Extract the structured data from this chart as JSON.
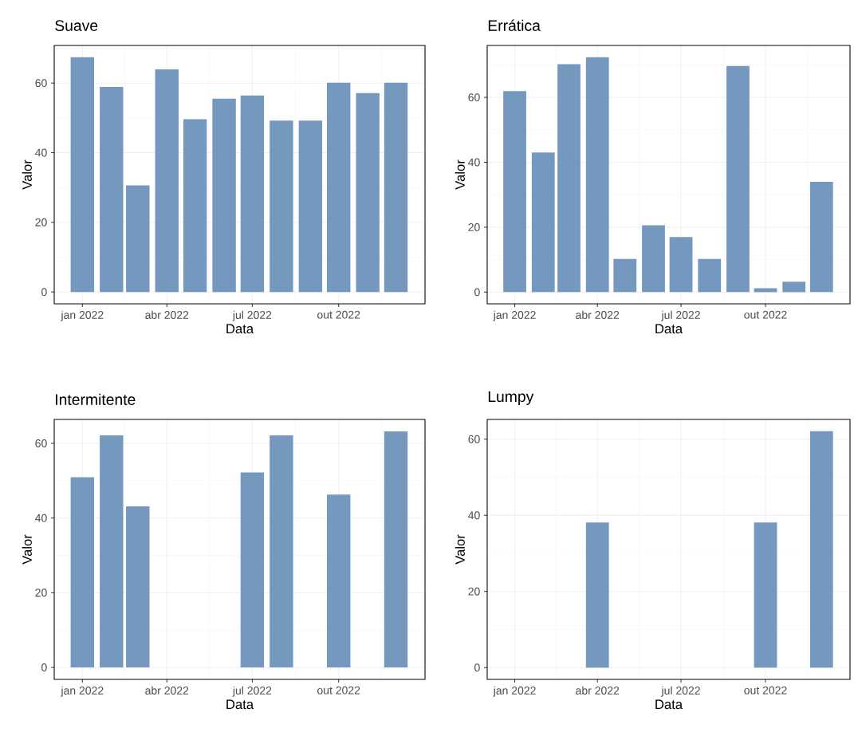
{
  "chart_data": [
    {
      "type": "bar",
      "title": "Suave",
      "xlabel": "Data",
      "ylabel": "Valor",
      "color": "#7598be",
      "grid": true,
      "x": [
        "2022-01",
        "2022-02",
        "2022-03",
        "2022-04",
        "2022-05",
        "2022-06",
        "2022-07",
        "2022-08",
        "2022-09",
        "2022-10",
        "2022-11",
        "2022-12"
      ],
      "values": [
        67.4,
        58.9,
        30.6,
        63.9,
        49.6,
        55.5,
        56.4,
        49.2,
        49.2,
        60.1,
        57.1,
        60.1
      ],
      "xlim": [
        "2021-12-02",
        "2023-01-01"
      ],
      "ylim": [
        -3.4,
        70.8
      ],
      "xticks": [
        {
          "value": "2022-01-01",
          "label": "jan 2022"
        },
        {
          "value": "2022-04-01",
          "label": "abr 2022"
        },
        {
          "value": "2022-07-01",
          "label": "jul 2022"
        },
        {
          "value": "2022-10-01",
          "label": "out 2022"
        }
      ],
      "yticks": [
        0,
        20,
        40,
        60
      ]
    },
    {
      "type": "bar",
      "title": "Errática",
      "xlabel": "Data",
      "ylabel": "Valor",
      "color": "#7598be",
      "grid": true,
      "x": [
        "2022-01",
        "2022-02",
        "2022-03",
        "2022-04",
        "2022-05",
        "2022-06",
        "2022-07",
        "2022-08",
        "2022-09",
        "2022-10",
        "2022-11",
        "2022-12"
      ],
      "values": [
        61.9,
        43.0,
        70.2,
        72.4,
        10.2,
        20.6,
        17.0,
        10.2,
        69.7,
        1.2,
        3.2,
        34.0
      ],
      "xlim": [
        "2021-12-02",
        "2023-01-01"
      ],
      "ylim": [
        -3.6,
        76.0
      ],
      "xticks": [
        {
          "value": "2022-01-01",
          "label": "jan 2022"
        },
        {
          "value": "2022-04-01",
          "label": "abr 2022"
        },
        {
          "value": "2022-07-01",
          "label": "jul 2022"
        },
        {
          "value": "2022-10-01",
          "label": "out 2022"
        }
      ],
      "yticks": [
        0,
        20,
        40,
        60
      ]
    },
    {
      "type": "bar",
      "title": "Intermitente",
      "xlabel": "Data",
      "ylabel": "Valor",
      "color": "#7598be",
      "grid": true,
      "x": [
        "2022-01",
        "2022-02",
        "2022-03",
        "2022-04",
        "2022-05",
        "2022-06",
        "2022-07",
        "2022-08",
        "2022-09",
        "2022-10",
        "2022-11",
        "2022-12"
      ],
      "values": [
        50.9,
        62.1,
        43.1,
        0,
        0,
        0,
        52.2,
        62.1,
        0,
        46.3,
        0,
        63.2
      ],
      "xlim": [
        "2021-12-02",
        "2023-01-01"
      ],
      "ylim": [
        -3.2,
        66.4
      ],
      "xticks": [
        {
          "value": "2022-01-01",
          "label": "jan 2022"
        },
        {
          "value": "2022-04-01",
          "label": "abr 2022"
        },
        {
          "value": "2022-07-01",
          "label": "jul 2022"
        },
        {
          "value": "2022-10-01",
          "label": "out 2022"
        }
      ],
      "yticks": [
        0,
        20,
        40,
        60
      ]
    },
    {
      "type": "bar",
      "title": "Lumpy",
      "xlabel": "Data",
      "ylabel": "Valor",
      "color": "#7598be",
      "grid": true,
      "x": [
        "2022-01",
        "2022-02",
        "2022-03",
        "2022-04",
        "2022-05",
        "2022-06",
        "2022-07",
        "2022-08",
        "2022-09",
        "2022-10",
        "2022-11",
        "2022-12"
      ],
      "values": [
        0,
        0,
        0,
        38.1,
        0,
        0,
        0,
        0,
        0,
        38.1,
        0,
        62.1
      ],
      "xlim": [
        "2021-12-02",
        "2023-01-01"
      ],
      "ylim": [
        -3.1,
        65.2
      ],
      "xticks": [
        {
          "value": "2022-01-01",
          "label": "jan 2022"
        },
        {
          "value": "2022-04-01",
          "label": "abr 2022"
        },
        {
          "value": "2022-07-01",
          "label": "jul 2022"
        },
        {
          "value": "2022-10-01",
          "label": "out 2022"
        }
      ],
      "yticks": [
        0,
        20,
        40,
        60
      ]
    }
  ]
}
